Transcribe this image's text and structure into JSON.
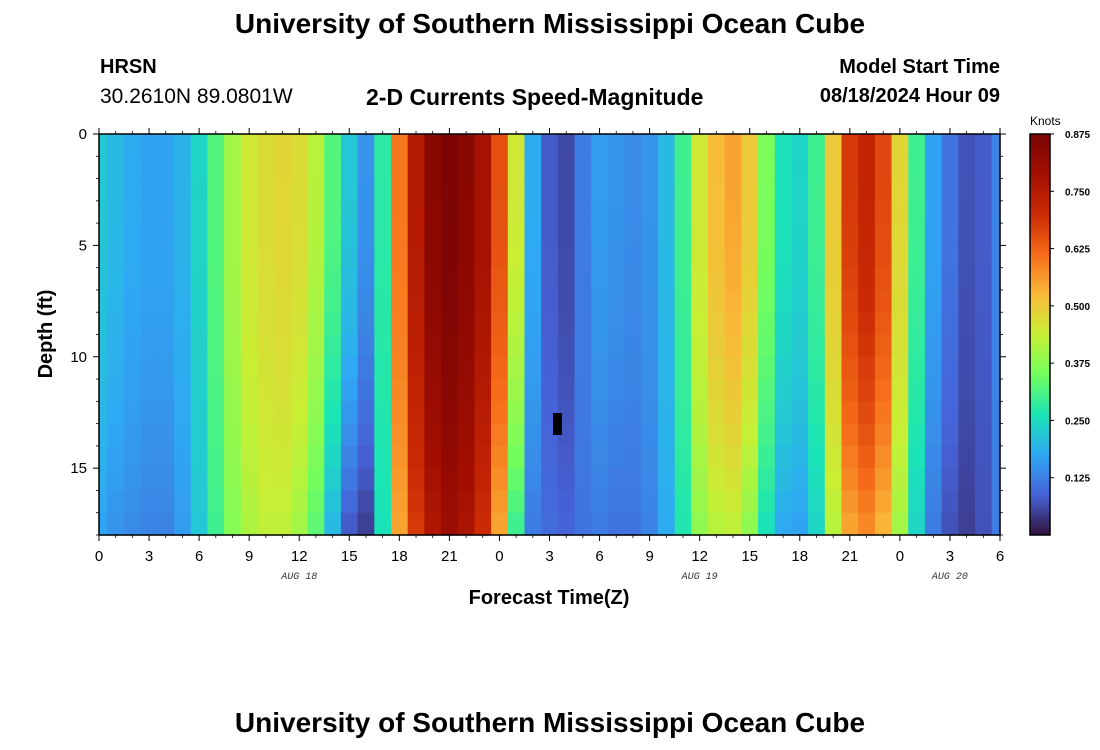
{
  "header": {
    "title": "University of Southern Mississippi Ocean Cube",
    "station": "HRSN",
    "coordinates": "30.2610N  89.0801W",
    "subtitle": "2-D Currents Speed-Magnitude",
    "model_start_label": "Model Start Time",
    "model_start_value": "08/18/2024 Hour 09"
  },
  "footer": {
    "title": "University of Southern Mississippi Ocean Cube"
  },
  "chart_data": {
    "type": "heatmap",
    "title": "2-D Currents Speed-Magnitude",
    "xlabel": "Forecast Time(Z)",
    "ylabel": "Depth (ft)",
    "x_ticks": [
      {
        "hours": 0,
        "label": "0"
      },
      {
        "hours": 3,
        "label": "3"
      },
      {
        "hours": 6,
        "label": "6"
      },
      {
        "hours": 9,
        "label": "9"
      },
      {
        "hours": 12,
        "label": "12"
      },
      {
        "hours": 15,
        "label": "15"
      },
      {
        "hours": 18,
        "label": "18"
      },
      {
        "hours": 21,
        "label": "21"
      },
      {
        "hours": 24,
        "label": "0"
      },
      {
        "hours": 27,
        "label": "3"
      },
      {
        "hours": 30,
        "label": "6"
      },
      {
        "hours": 33,
        "label": "9"
      },
      {
        "hours": 36,
        "label": "12"
      },
      {
        "hours": 39,
        "label": "15"
      },
      {
        "hours": 42,
        "label": "18"
      },
      {
        "hours": 45,
        "label": "21"
      },
      {
        "hours": 48,
        "label": "0"
      },
      {
        "hours": 51,
        "label": "3"
      },
      {
        "hours": 54,
        "label": "6"
      }
    ],
    "date_labels": [
      {
        "hours": 12,
        "label": "AUG 18"
      },
      {
        "hours": 36,
        "label": "AUG 19"
      },
      {
        "hours": 51,
        "label": "AUG 20"
      }
    ],
    "xlim": [
      0,
      54
    ],
    "ylim": [
      0,
      18
    ],
    "y_ticks": [
      0,
      5,
      10,
      15
    ],
    "depth_levels_ft": [
      0.5,
      1.5,
      2.5,
      3.5,
      4.5,
      5.5,
      6.5,
      7.5,
      8.5,
      9.5,
      10.5,
      11.5,
      12.5,
      13.5,
      14.5,
      15.5,
      16.5,
      17.5
    ],
    "time_step_hours": 1,
    "surface_speed_knots": [
      0.22,
      0.2,
      0.18,
      0.17,
      0.17,
      0.19,
      0.24,
      0.32,
      0.4,
      0.45,
      0.47,
      0.48,
      0.47,
      0.42,
      0.32,
      0.22,
      0.15,
      0.28,
      0.6,
      0.75,
      0.84,
      0.87,
      0.84,
      0.78,
      0.65,
      0.45,
      0.18,
      0.08,
      0.06,
      0.12,
      0.16,
      0.15,
      0.14,
      0.15,
      0.2,
      0.3,
      0.45,
      0.52,
      0.55,
      0.5,
      0.36,
      0.26,
      0.24,
      0.3,
      0.5,
      0.68,
      0.72,
      0.66,
      0.48,
      0.3,
      0.17,
      0.11,
      0.07,
      0.08,
      0.13
    ],
    "bottom_speed_knots": [
      0.17,
      0.15,
      0.14,
      0.13,
      0.13,
      0.16,
      0.22,
      0.3,
      0.37,
      0.41,
      0.43,
      0.43,
      0.4,
      0.33,
      0.2,
      0.08,
      0.05,
      0.26,
      0.55,
      0.68,
      0.76,
      0.8,
      0.77,
      0.7,
      0.55,
      0.3,
      0.12,
      0.1,
      0.09,
      0.11,
      0.12,
      0.11,
      0.11,
      0.13,
      0.18,
      0.27,
      0.38,
      0.42,
      0.43,
      0.38,
      0.26,
      0.18,
      0.17,
      0.24,
      0.42,
      0.55,
      0.58,
      0.53,
      0.4,
      0.24,
      0.12,
      0.07,
      0.05,
      0.07,
      0.12
    ],
    "colorbar": {
      "title": "Knots",
      "min": 0.0,
      "max": 0.875,
      "ticks": [
        "0.125",
        "0.250",
        "0.375",
        "0.500",
        "0.625",
        "0.750",
        "0.875"
      ],
      "tick_values": [
        0.125,
        0.25,
        0.375,
        0.5,
        0.625,
        0.75,
        0.875
      ]
    }
  }
}
